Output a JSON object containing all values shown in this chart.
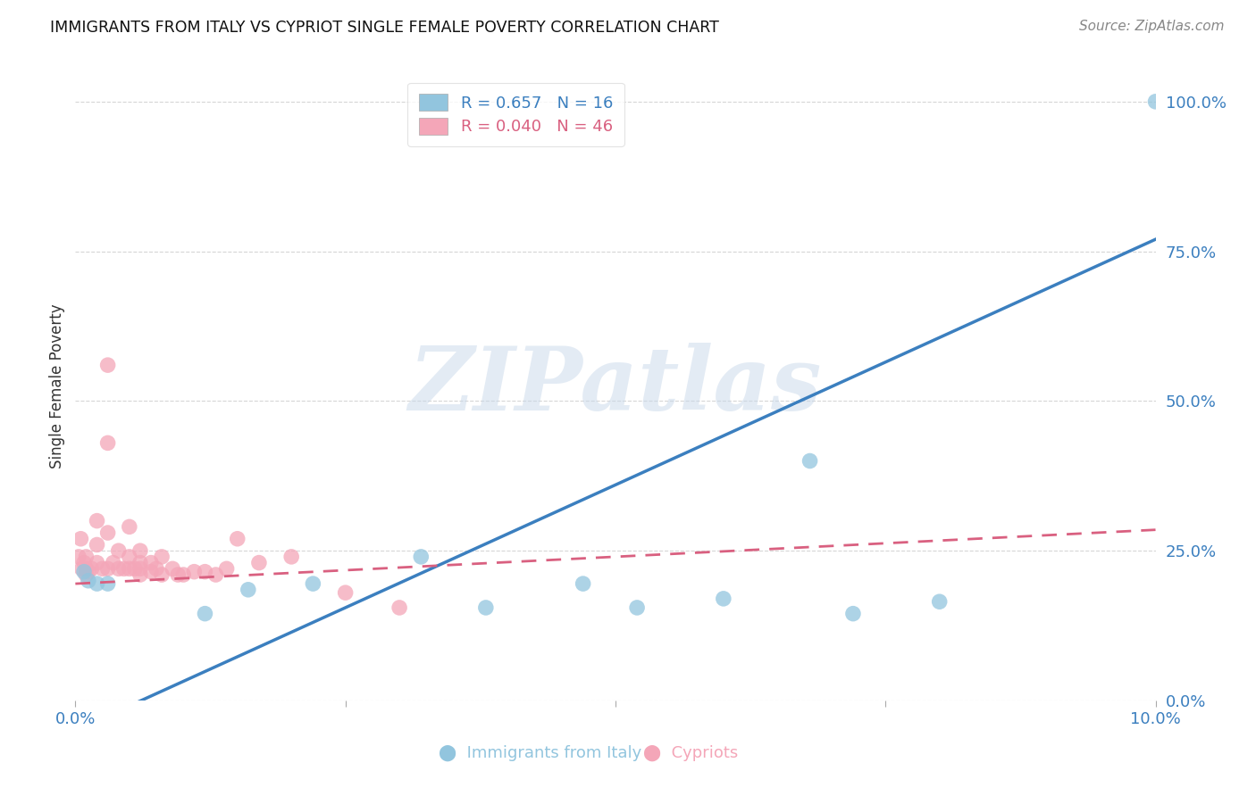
{
  "title": "IMMIGRANTS FROM ITALY VS CYPRIOT SINGLE FEMALE POVERTY CORRELATION CHART",
  "source": "Source: ZipAtlas.com",
  "xlabel_blue": "Immigrants from Italy",
  "xlabel_pink": "Cypriots",
  "ylabel": "Single Female Poverty",
  "xlim": [
    0.0,
    0.1
  ],
  "ylim": [
    0.0,
    1.05
  ],
  "xtick_positions": [
    0.0,
    0.025,
    0.05,
    0.075,
    0.1
  ],
  "xtick_labels_show": [
    "0.0%",
    "",
    "",
    "",
    "10.0%"
  ],
  "ytick_values": [
    0.0,
    0.25,
    0.5,
    0.75,
    1.0
  ],
  "ytick_labels": [
    "0.0%",
    "25.0%",
    "50.0%",
    "75.0%",
    "100.0%"
  ],
  "legend_blue_R": "0.657",
  "legend_blue_N": "16",
  "legend_pink_R": "0.040",
  "legend_pink_N": "46",
  "blue_color": "#92c5de",
  "pink_color": "#f4a6b8",
  "blue_line_color": "#3b7fbf",
  "pink_line_color": "#d96080",
  "watermark_text": "ZIPatlas",
  "blue_scatter_x": [
    0.0008,
    0.0012,
    0.002,
    0.003,
    0.012,
    0.016,
    0.022,
    0.032,
    0.038,
    0.047,
    0.052,
    0.06,
    0.068,
    0.072,
    0.08,
    0.1
  ],
  "blue_scatter_y": [
    0.215,
    0.2,
    0.195,
    0.195,
    0.145,
    0.185,
    0.195,
    0.24,
    0.155,
    0.195,
    0.155,
    0.17,
    0.4,
    0.145,
    0.165,
    1.0
  ],
  "pink_scatter_x": [
    0.0003,
    0.0005,
    0.0006,
    0.0008,
    0.001,
    0.001,
    0.001,
    0.0012,
    0.0015,
    0.002,
    0.002,
    0.002,
    0.0025,
    0.003,
    0.003,
    0.003,
    0.003,
    0.0035,
    0.004,
    0.004,
    0.0045,
    0.005,
    0.005,
    0.005,
    0.0055,
    0.006,
    0.006,
    0.006,
    0.006,
    0.007,
    0.007,
    0.0075,
    0.008,
    0.008,
    0.009,
    0.0095,
    0.01,
    0.011,
    0.012,
    0.013,
    0.014,
    0.015,
    0.017,
    0.02,
    0.025,
    0.03
  ],
  "pink_scatter_y": [
    0.24,
    0.27,
    0.22,
    0.23,
    0.24,
    0.22,
    0.21,
    0.215,
    0.22,
    0.3,
    0.26,
    0.23,
    0.22,
    0.56,
    0.43,
    0.28,
    0.22,
    0.23,
    0.25,
    0.22,
    0.22,
    0.29,
    0.24,
    0.22,
    0.22,
    0.25,
    0.23,
    0.22,
    0.21,
    0.23,
    0.215,
    0.22,
    0.24,
    0.21,
    0.22,
    0.21,
    0.21,
    0.215,
    0.215,
    0.21,
    0.22,
    0.27,
    0.23,
    0.24,
    0.18,
    0.155
  ],
  "blue_line_x": [
    0.0,
    0.1
  ],
  "blue_line_y": [
    -0.05,
    0.77
  ],
  "pink_line_x": [
    0.0,
    0.1
  ],
  "pink_line_y": [
    0.195,
    0.285
  ],
  "grid_color": "#cccccc",
  "background_color": "#ffffff"
}
